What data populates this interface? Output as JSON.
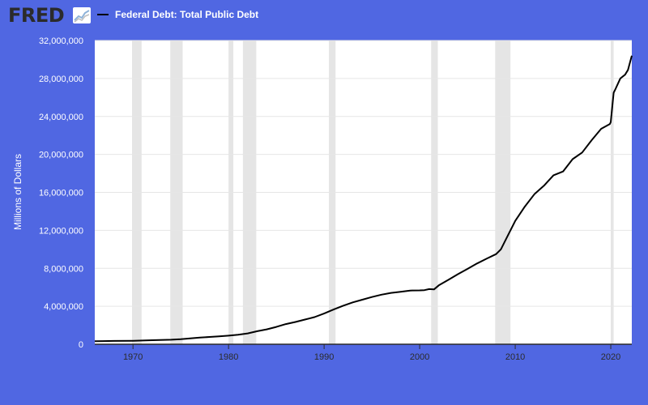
{
  "header": {
    "logo_text": "FRED",
    "logo_icon": "trend-line-chart-icon"
  },
  "colors": {
    "background": "#5067e2",
    "plot_background": "#ffffff",
    "line": "#000000",
    "recession_shade": "#e5e5e5",
    "gridline": "#e6e6e6"
  },
  "chart_data": {
    "type": "line",
    "title": "",
    "xlabel": "",
    "ylabel": "Millions of Dollars",
    "xlim": [
      1966,
      2022.2
    ],
    "ylim": [
      0,
      32000000
    ],
    "grid": true,
    "legend_position": "top-left",
    "x_ticks": [
      {
        "value": 1970,
        "label": "1970"
      },
      {
        "value": 1980,
        "label": "1980"
      },
      {
        "value": 1990,
        "label": "1990"
      },
      {
        "value": 2000,
        "label": "2000"
      },
      {
        "value": 2010,
        "label": "2010"
      },
      {
        "value": 2020,
        "label": "2020"
      }
    ],
    "y_ticks": [
      {
        "value": 0,
        "label": "0"
      },
      {
        "value": 4000000,
        "label": "4,000,000"
      },
      {
        "value": 8000000,
        "label": "8,000,000"
      },
      {
        "value": 12000000,
        "label": "12,000,000"
      },
      {
        "value": 16000000,
        "label": "16,000,000"
      },
      {
        "value": 20000000,
        "label": "20,000,000"
      },
      {
        "value": 24000000,
        "label": "24,000,000"
      },
      {
        "value": 28000000,
        "label": "28,000,000"
      },
      {
        "value": 32000000,
        "label": "32,000,000"
      }
    ],
    "recessions": [
      [
        1969.9,
        1970.9
      ],
      [
        1973.9,
        1975.2
      ],
      [
        1980.0,
        1980.5
      ],
      [
        1981.5,
        1982.9
      ],
      [
        1990.5,
        1991.2
      ],
      [
        2001.2,
        2001.9
      ],
      [
        2007.9,
        2009.5
      ],
      [
        2020.0,
        2020.3
      ]
    ],
    "series": [
      {
        "name": "Federal Debt: Total Public Debt",
        "color": "#000000",
        "x": [
          1966,
          1968,
          1970,
          1972,
          1974,
          1975,
          1976,
          1977,
          1978,
          1979,
          1980,
          1981,
          1982,
          1983,
          1984,
          1985,
          1986,
          1987,
          1988,
          1989,
          1990,
          1991,
          1992,
          1993,
          1994,
          1995,
          1996,
          1997,
          1998,
          1999,
          2000,
          2000.5,
          2001,
          2001.5,
          2002,
          2003,
          2004,
          2005,
          2006,
          2007,
          2008,
          2008.5,
          2009,
          2010,
          2011,
          2012,
          2013,
          2014,
          2015,
          2016,
          2017,
          2018,
          2019,
          2019.9,
          2020.0,
          2020.3,
          2020.5,
          2021,
          2021.5,
          2021.8,
          2022.2
        ],
        "values": [
          320000,
          347000,
          371000,
          427000,
          475000,
          533000,
          620000,
          699000,
          772000,
          827000,
          908000,
          998000,
          1142000,
          1377000,
          1572000,
          1823000,
          2125000,
          2350000,
          2602000,
          2857000,
          3233000,
          3665000,
          4065000,
          4411000,
          4693000,
          4974000,
          5224000,
          5413000,
          5526000,
          5656000,
          5674000,
          5700000,
          5807000,
          5780000,
          6200000,
          6783000,
          7379000,
          7933000,
          8507000,
          9008000,
          9500000,
          10000000,
          11000000,
          13000000,
          14500000,
          15800000,
          16700000,
          17800000,
          18200000,
          19500000,
          20200000,
          21500000,
          22700000,
          23200000,
          23400000,
          26500000,
          26900000,
          28000000,
          28400000,
          28900000,
          30400000
        ]
      }
    ]
  }
}
